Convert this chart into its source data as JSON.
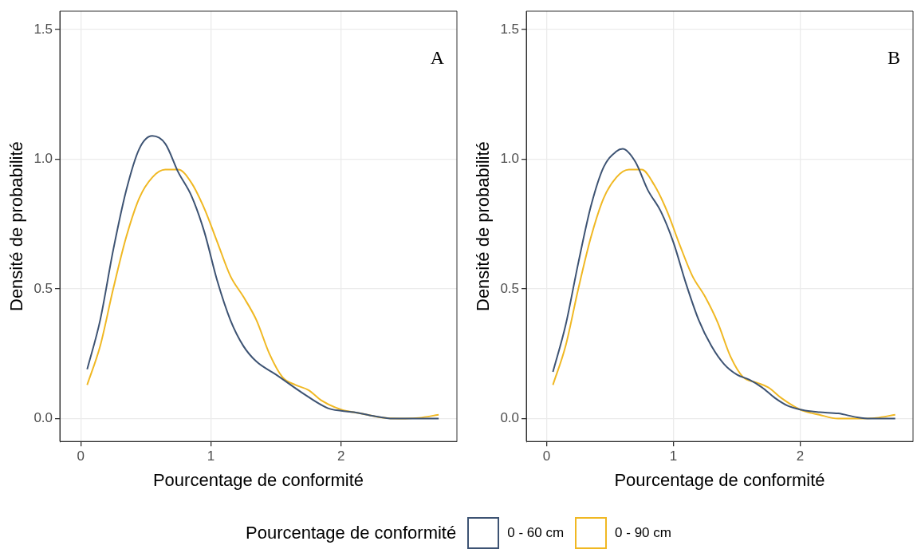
{
  "chart_data": [
    {
      "type": "line",
      "xlabel": "Pourcentage de conformité",
      "ylabel": "Densité de probabilité",
      "annotations": [
        "A"
      ],
      "legend": "bottom",
      "legend_title": "Pourcentage de conformité",
      "grid": true,
      "marker": "none",
      "line_style": "solid",
      "xlim": [
        -0.16,
        2.89
      ],
      "ylim": [
        -0.088,
        1.571
      ],
      "xticks": [
        0,
        1,
        2
      ],
      "yticks": [
        {
          "value": 0,
          "label": "0.0"
        },
        {
          "value": 0.5,
          "label": "0.5"
        },
        {
          "value": 1,
          "label": "1.0"
        },
        {
          "value": 1.5,
          "label": "1.5"
        }
      ],
      "series": [
        {
          "name": "0 - 60 cm",
          "color": "#3d5373",
          "x": [
            0.05,
            0.15,
            0.25,
            0.35,
            0.45,
            0.55,
            0.65,
            0.75,
            0.85,
            0.95,
            1.05,
            1.15,
            1.25,
            1.35,
            1.5,
            1.7,
            1.9,
            2.0,
            2.1,
            2.25,
            2.4,
            2.75
          ],
          "values": [
            0.19,
            0.38,
            0.65,
            0.88,
            1.04,
            1.09,
            1.06,
            0.95,
            0.86,
            0.72,
            0.53,
            0.38,
            0.28,
            0.22,
            0.17,
            0.1,
            0.04,
            0.03,
            0.025,
            0.01,
            0,
            0
          ]
        },
        {
          "name": "0 - 90 cm",
          "color": "#f0b823",
          "x": [
            0.05,
            0.15,
            0.25,
            0.35,
            0.45,
            0.55,
            0.65,
            0.75,
            0.85,
            0.95,
            1.05,
            1.15,
            1.25,
            1.35,
            1.45,
            1.55,
            1.65,
            1.75,
            1.85,
            2.0,
            2.15,
            2.3,
            2.45,
            2.6,
            2.75
          ],
          "values": [
            0.13,
            0.28,
            0.5,
            0.7,
            0.85,
            0.93,
            0.96,
            0.96,
            0.91,
            0.81,
            0.68,
            0.55,
            0.47,
            0.38,
            0.25,
            0.16,
            0.13,
            0.11,
            0.07,
            0.035,
            0.02,
            0.005,
            0,
            0.003,
            0.015
          ]
        }
      ]
    },
    {
      "type": "line",
      "xlabel": "Pourcentage de conformité",
      "ylabel": "Densité de probabilité",
      "annotations": [
        "B"
      ],
      "grid": true,
      "marker": "none",
      "line_style": "solid",
      "xlim": [
        -0.16,
        2.89
      ],
      "ylim": [
        -0.088,
        1.571
      ],
      "xticks": [
        0,
        1,
        2
      ],
      "yticks": [
        {
          "value": 0,
          "label": "0.0"
        },
        {
          "value": 0.5,
          "label": "0.5"
        },
        {
          "value": 1,
          "label": "1.0"
        },
        {
          "value": 1.5,
          "label": "1.5"
        }
      ],
      "series": [
        {
          "color": "#3d5373",
          "x": [
            0.05,
            0.15,
            0.25,
            0.35,
            0.45,
            0.55,
            0.6,
            0.7,
            0.8,
            0.9,
            1.0,
            1.1,
            1.2,
            1.3,
            1.4,
            1.5,
            1.6,
            1.7,
            1.8,
            1.9,
            2.0,
            2.15,
            2.3,
            2.45,
            2.55,
            2.75
          ],
          "values": [
            0.18,
            0.36,
            0.6,
            0.82,
            0.97,
            1.03,
            1.04,
            0.99,
            0.88,
            0.8,
            0.68,
            0.52,
            0.38,
            0.28,
            0.21,
            0.17,
            0.15,
            0.12,
            0.08,
            0.05,
            0.035,
            0.025,
            0.02,
            0.005,
            0,
            0
          ]
        },
        {
          "color": "#f0b823",
          "x": [
            0.05,
            0.15,
            0.25,
            0.35,
            0.45,
            0.55,
            0.65,
            0.75,
            0.85,
            0.95,
            1.05,
            1.15,
            1.25,
            1.35,
            1.45,
            1.55,
            1.65,
            1.75,
            1.85,
            2.0,
            2.15,
            2.3,
            2.45,
            2.6,
            2.75
          ],
          "values": [
            0.13,
            0.28,
            0.5,
            0.7,
            0.85,
            0.93,
            0.96,
            0.96,
            0.9,
            0.8,
            0.67,
            0.55,
            0.47,
            0.37,
            0.24,
            0.16,
            0.14,
            0.12,
            0.08,
            0.035,
            0.015,
            0,
            0,
            0.003,
            0.015
          ]
        }
      ]
    }
  ]
}
